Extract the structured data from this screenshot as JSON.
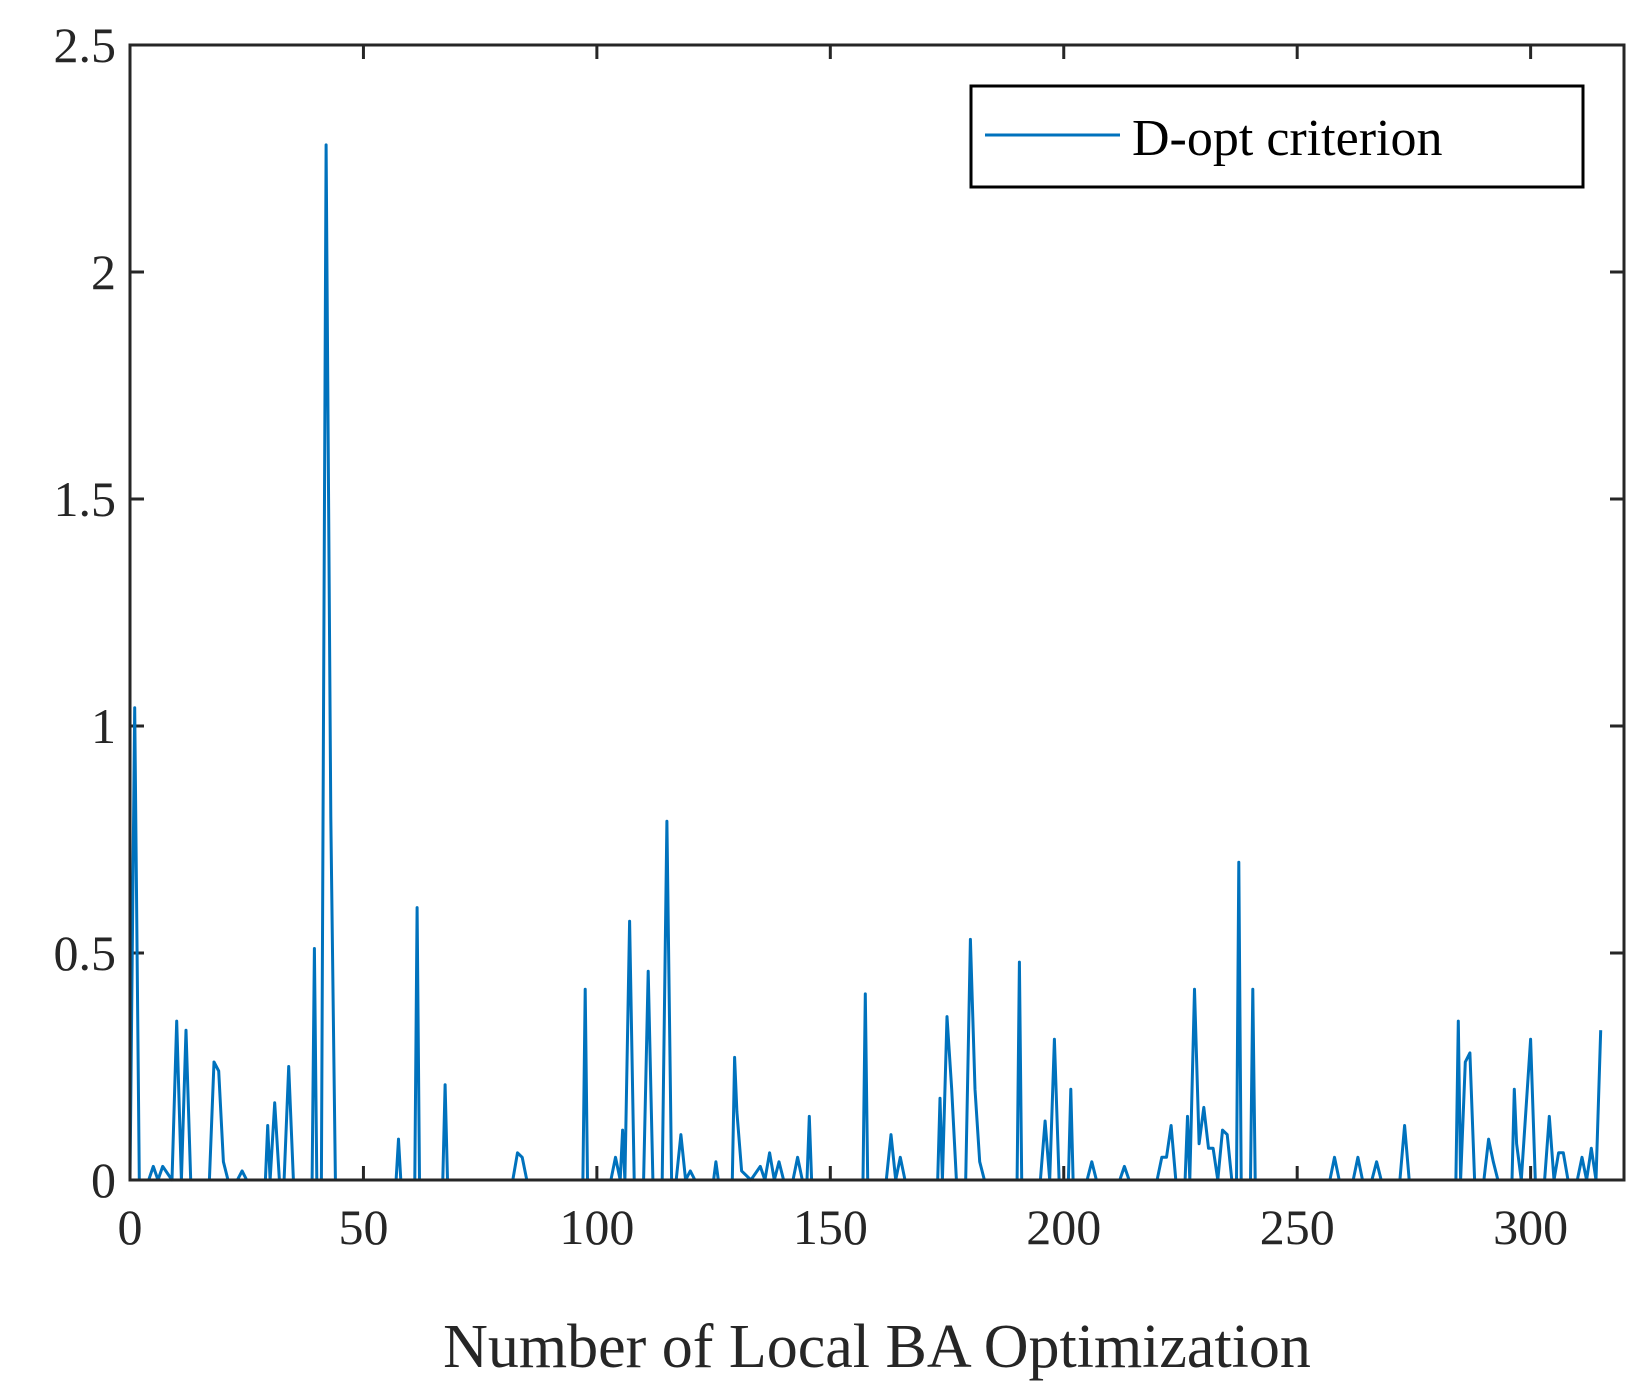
{
  "chart_data": {
    "type": "line",
    "title": "",
    "xlabel": "Number of Local BA Optimization",
    "ylabel": "",
    "xlim": [
      0,
      320
    ],
    "ylim": [
      0,
      2.5
    ],
    "xticks": [
      0,
      50,
      100,
      150,
      200,
      250,
      300
    ],
    "yticks": [
      0,
      0.5,
      1,
      1.5,
      2,
      2.5
    ],
    "xtick_labels": [
      "0",
      "50",
      "100",
      "150",
      "200",
      "250",
      "300"
    ],
    "ytick_labels": [
      "0",
      "0.5",
      "1",
      "1.5",
      "2",
      "2.5"
    ],
    "legend": {
      "position": "top-right",
      "entries": [
        "D-opt criterion"
      ]
    },
    "grid": false,
    "colors": {
      "series": "#0072BD",
      "axis": "#262626"
    },
    "series": [
      {
        "name": "D-opt criterion",
        "points": [
          [
            0,
            0.0
          ],
          [
            1,
            1.04
          ],
          [
            2,
            0.0
          ],
          [
            4,
            0.0
          ],
          [
            5,
            0.03
          ],
          [
            6,
            0.0
          ],
          [
            7,
            0.03
          ],
          [
            9,
            0.0
          ],
          [
            10,
            0.35
          ],
          [
            11,
            0.0
          ],
          [
            12,
            0.33
          ],
          [
            13,
            0.0
          ],
          [
            17,
            0.0
          ],
          [
            18,
            0.26
          ],
          [
            19,
            0.24
          ],
          [
            20,
            0.04
          ],
          [
            21,
            0.0
          ],
          [
            23,
            0.0
          ],
          [
            24,
            0.02
          ],
          [
            25,
            0.0
          ],
          [
            29,
            0.0
          ],
          [
            29.5,
            0.12
          ],
          [
            30,
            0.0
          ],
          [
            31,
            0.17
          ],
          [
            32,
            0.0
          ],
          [
            33,
            0.0
          ],
          [
            34,
            0.25
          ],
          [
            35,
            0.0
          ],
          [
            39,
            0.0
          ],
          [
            39.5,
            0.51
          ],
          [
            40,
            0.0
          ],
          [
            41,
            0.0
          ],
          [
            42,
            2.28
          ],
          [
            43,
            0.8
          ],
          [
            44,
            0.0
          ],
          [
            57,
            0.0
          ],
          [
            57.5,
            0.09
          ],
          [
            58,
            0.0
          ],
          [
            61,
            0.0
          ],
          [
            61.5,
            0.6
          ],
          [
            62,
            0.0
          ],
          [
            67,
            0.0
          ],
          [
            67.5,
            0.21
          ],
          [
            68,
            0.0
          ],
          [
            82,
            0.0
          ],
          [
            83,
            0.06
          ],
          [
            84,
            0.05
          ],
          [
            85,
            0.0
          ],
          [
            97,
            0.0
          ],
          [
            97.5,
            0.42
          ],
          [
            98,
            0.0
          ],
          [
            103,
            0.0
          ],
          [
            104,
            0.05
          ],
          [
            105,
            0.0
          ],
          [
            105.5,
            0.11
          ],
          [
            106,
            0.0
          ],
          [
            107,
            0.57
          ],
          [
            108,
            0.0
          ],
          [
            110,
            0.0
          ],
          [
            111,
            0.46
          ],
          [
            112,
            0.0
          ],
          [
            114,
            0.0
          ],
          [
            115,
            0.79
          ],
          [
            116,
            0.0
          ],
          [
            117,
            0.0
          ],
          [
            118,
            0.1
          ],
          [
            119,
            0.0
          ],
          [
            120,
            0.02
          ],
          [
            121,
            0.0
          ],
          [
            125,
            0.0
          ],
          [
            125.5,
            0.04
          ],
          [
            126,
            0.0
          ],
          [
            129,
            0.0
          ],
          [
            129.5,
            0.27
          ],
          [
            130,
            0.15
          ],
          [
            131,
            0.02
          ],
          [
            133,
            0.0
          ],
          [
            135,
            0.03
          ],
          [
            136,
            0.0
          ],
          [
            137,
            0.06
          ],
          [
            138,
            0.0
          ],
          [
            139,
            0.04
          ],
          [
            140,
            0.0
          ],
          [
            142,
            0.0
          ],
          [
            143,
            0.05
          ],
          [
            144,
            0.0
          ],
          [
            145,
            0.0
          ],
          [
            145.5,
            0.14
          ],
          [
            146,
            0.0
          ],
          [
            157,
            0.0
          ],
          [
            157.5,
            0.41
          ],
          [
            158,
            0.0
          ],
          [
            162,
            0.0
          ],
          [
            163,
            0.1
          ],
          [
            164,
            0.0
          ],
          [
            165,
            0.05
          ],
          [
            166,
            0.0
          ],
          [
            173,
            0.0
          ],
          [
            173.5,
            0.18
          ],
          [
            174,
            0.0
          ],
          [
            175,
            0.36
          ],
          [
            176,
            0.2
          ],
          [
            177,
            0.0
          ],
          [
            179,
            0.0
          ],
          [
            180,
            0.53
          ],
          [
            181,
            0.2
          ],
          [
            182,
            0.04
          ],
          [
            183,
            0.0
          ],
          [
            190,
            0.0
          ],
          [
            190.5,
            0.48
          ],
          [
            191,
            0.0
          ],
          [
            195,
            0.0
          ],
          [
            196,
            0.13
          ],
          [
            197,
            0.0
          ],
          [
            198,
            0.31
          ],
          [
            199,
            0.0
          ],
          [
            201,
            0.0
          ],
          [
            201.5,
            0.2
          ],
          [
            202,
            0.0
          ],
          [
            205,
            0.0
          ],
          [
            206,
            0.04
          ],
          [
            207,
            0.0
          ],
          [
            212,
            0.0
          ],
          [
            213,
            0.03
          ],
          [
            214,
            0.0
          ],
          [
            220,
            0.0
          ],
          [
            221,
            0.05
          ],
          [
            222,
            0.05
          ],
          [
            223,
            0.12
          ],
          [
            224,
            0.0
          ],
          [
            226,
            0.0
          ],
          [
            226.5,
            0.14
          ],
          [
            227,
            0.0
          ],
          [
            228,
            0.42
          ],
          [
            229,
            0.08
          ],
          [
            230,
            0.16
          ],
          [
            231,
            0.07
          ],
          [
            232,
            0.07
          ],
          [
            233,
            0.0
          ],
          [
            234,
            0.11
          ],
          [
            235,
            0.1
          ],
          [
            236,
            0.0
          ],
          [
            237,
            0.0
          ],
          [
            237.5,
            0.7
          ],
          [
            238,
            0.0
          ],
          [
            240,
            0.0
          ],
          [
            240.5,
            0.42
          ],
          [
            241,
            0.0
          ],
          [
            257,
            0.0
          ],
          [
            258,
            0.05
          ],
          [
            259,
            0.0
          ],
          [
            262,
            0.0
          ],
          [
            263,
            0.05
          ],
          [
            264,
            0.0
          ],
          [
            266,
            0.0
          ],
          [
            267,
            0.04
          ],
          [
            268,
            0.0
          ],
          [
            272,
            0.0
          ],
          [
            273,
            0.12
          ],
          [
            274,
            0.0
          ],
          [
            284,
            0.0
          ],
          [
            284.5,
            0.35
          ],
          [
            285,
            0.0
          ],
          [
            286,
            0.26
          ],
          [
            287,
            0.28
          ],
          [
            288,
            0.0
          ],
          [
            290,
            0.0
          ],
          [
            291,
            0.09
          ],
          [
            292,
            0.04
          ],
          [
            293,
            0.0
          ],
          [
            296,
            0.0
          ],
          [
            296.5,
            0.2
          ],
          [
            297,
            0.08
          ],
          [
            298,
            0.0
          ],
          [
            300,
            0.31
          ],
          [
            301,
            0.0
          ],
          [
            303,
            0.0
          ],
          [
            304,
            0.14
          ],
          [
            305,
            0.0
          ],
          [
            306,
            0.06
          ],
          [
            307,
            0.06
          ],
          [
            308,
            0.0
          ],
          [
            310,
            0.0
          ],
          [
            311,
            0.05
          ],
          [
            312,
            0.0
          ],
          [
            313,
            0.07
          ],
          [
            314,
            0.0
          ],
          [
            315,
            0.33
          ]
        ]
      }
    ]
  }
}
